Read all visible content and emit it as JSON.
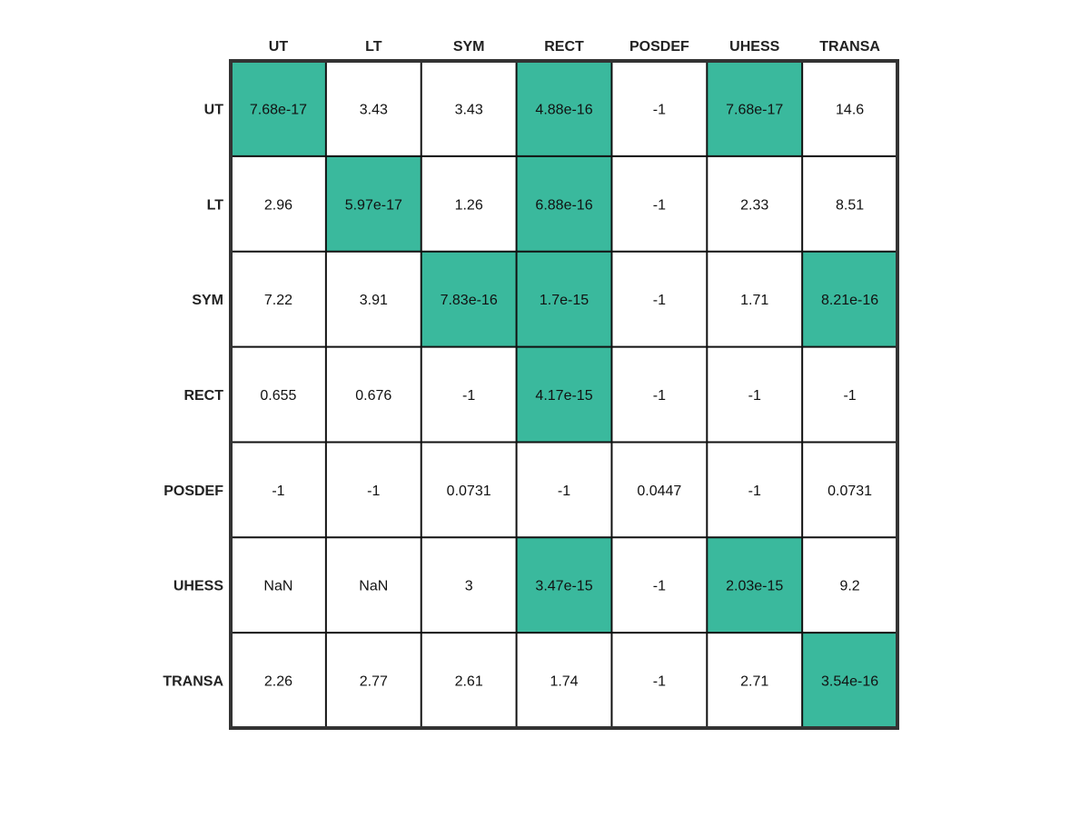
{
  "colors": {
    "highlight": "#3ab99d",
    "normal": "#ffffff",
    "grid": "#111111",
    "frame": "#333333"
  },
  "chart_data": {
    "type": "heatmap",
    "title": "",
    "xlabel": "",
    "ylabel": "",
    "columns": [
      "UT",
      "LT",
      "SYM",
      "RECT",
      "POSDEF",
      "UHESS",
      "TRANSA"
    ],
    "rows": [
      "UT",
      "LT",
      "SYM",
      "RECT",
      "POSDEF",
      "UHESS",
      "TRANSA"
    ],
    "values": [
      [
        "7.68e-17",
        "3.43",
        "3.43",
        "4.88e-16",
        "-1",
        "7.68e-17",
        "14.6"
      ],
      [
        "2.96",
        "5.97e-17",
        "1.26",
        "6.88e-16",
        "-1",
        "2.33",
        "8.51"
      ],
      [
        "7.22",
        "3.91",
        "7.83e-16",
        "1.7e-15",
        "-1",
        "1.71",
        "8.21e-16"
      ],
      [
        "0.655",
        "0.676",
        "-1",
        "4.17e-15",
        "-1",
        "-1",
        "-1"
      ],
      [
        "-1",
        "-1",
        "0.0731",
        "-1",
        "0.0447",
        "-1",
        "0.0731"
      ],
      [
        "NaN",
        "NaN",
        "3",
        "3.47e-15",
        "-1",
        "2.03e-15",
        "9.2"
      ],
      [
        "2.26",
        "2.77",
        "2.61",
        "1.74",
        "-1",
        "2.71",
        "3.54e-16"
      ]
    ],
    "highlighted": [
      [
        true,
        false,
        false,
        true,
        false,
        true,
        false
      ],
      [
        false,
        true,
        false,
        true,
        false,
        false,
        false
      ],
      [
        false,
        false,
        true,
        true,
        false,
        false,
        true
      ],
      [
        false,
        false,
        false,
        true,
        false,
        false,
        false
      ],
      [
        false,
        false,
        false,
        false,
        false,
        false,
        false
      ],
      [
        false,
        false,
        false,
        true,
        false,
        true,
        false
      ],
      [
        false,
        false,
        false,
        false,
        false,
        false,
        true
      ]
    ]
  }
}
